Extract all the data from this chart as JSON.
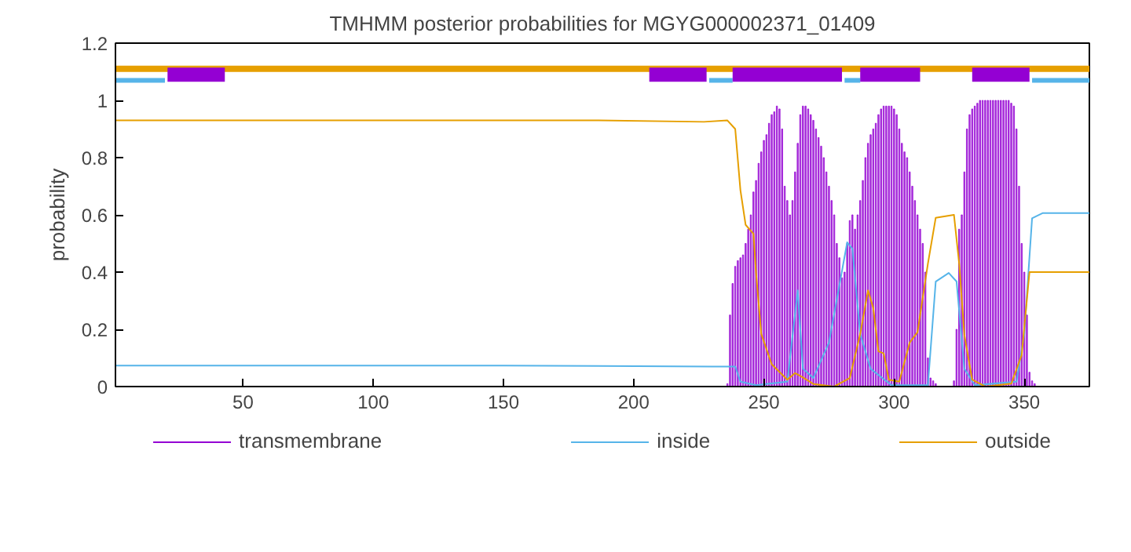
{
  "chart_data": {
    "type": "line",
    "title": "TMHMM posterior probabilities for MGYG000002371_01409",
    "ylabel": "probability",
    "xlim": [
      1,
      375
    ],
    "xticks": [
      50,
      100,
      150,
      200,
      250,
      300,
      350
    ],
    "ylim": [
      0,
      1.2
    ],
    "yticks": [
      0,
      0.2,
      0.4,
      0.6,
      0.8,
      1,
      1.2
    ],
    "grid": false,
    "legend": "bottom",
    "series": [
      {
        "name": "transmembrane",
        "type": "bar",
        "color": "#9400d3",
        "x": [
          236,
          237,
          238,
          239,
          240,
          241,
          242,
          243,
          244,
          245,
          246,
          247,
          248,
          249,
          250,
          251,
          252,
          253,
          254,
          255,
          256,
          257,
          258,
          259,
          260,
          261,
          262,
          263,
          264,
          265,
          266,
          267,
          268,
          269,
          270,
          271,
          272,
          273,
          274,
          275,
          276,
          277,
          278,
          279,
          280,
          281,
          282,
          283,
          284,
          285,
          286,
          287,
          288,
          289,
          290,
          291,
          292,
          293,
          294,
          295,
          296,
          297,
          298,
          299,
          300,
          301,
          302,
          303,
          304,
          305,
          306,
          307,
          308,
          309,
          310,
          311,
          312,
          313,
          314,
          315,
          316,
          317,
          318,
          319,
          320,
          321,
          322,
          323,
          324,
          325,
          326,
          327,
          328,
          329,
          330,
          331,
          332,
          333,
          334,
          335,
          336,
          337,
          338,
          339,
          340,
          341,
          342,
          343,
          344,
          345,
          346,
          347,
          348,
          349,
          350,
          351,
          352,
          353,
          354,
          355
        ],
        "values": [
          0.01,
          0.25,
          0.36,
          0.42,
          0.44,
          0.45,
          0.46,
          0.5,
          0.55,
          0.6,
          0.68,
          0.72,
          0.78,
          0.82,
          0.86,
          0.88,
          0.92,
          0.95,
          0.96,
          0.98,
          0.97,
          0.9,
          0.7,
          0.65,
          0.6,
          0.65,
          0.75,
          0.85,
          0.95,
          0.98,
          0.98,
          0.97,
          0.95,
          0.93,
          0.9,
          0.87,
          0.84,
          0.8,
          0.75,
          0.7,
          0.65,
          0.6,
          0.5,
          0.45,
          0.38,
          0.4,
          0.5,
          0.58,
          0.6,
          0.55,
          0.6,
          0.65,
          0.72,
          0.8,
          0.85,
          0.88,
          0.9,
          0.92,
          0.95,
          0.97,
          0.98,
          0.98,
          0.98,
          0.98,
          0.97,
          0.95,
          0.9,
          0.85,
          0.82,
          0.8,
          0.75,
          0.7,
          0.65,
          0.6,
          0.55,
          0.5,
          0.4,
          0.1,
          0.03,
          0.02,
          0.01,
          0,
          0,
          0,
          0,
          0,
          0,
          0.02,
          0.2,
          0.55,
          0.6,
          0.75,
          0.9,
          0.95,
          0.97,
          0.98,
          0.99,
          1,
          1,
          1,
          1,
          1,
          1,
          1,
          1,
          1,
          1,
          1,
          1,
          0.99,
          0.98,
          0.9,
          0.7,
          0.5,
          0.4,
          0.25,
          0.05,
          0.02,
          0.01,
          0
        ]
      },
      {
        "name": "inside",
        "color": "#56b4e9",
        "x": [
          1,
          150,
          230,
          236,
          239,
          241,
          247,
          259,
          263,
          265,
          269,
          275,
          282,
          284,
          287,
          291,
          299,
          313,
          316,
          321,
          324,
          327,
          331,
          347,
          350,
          353,
          357,
          375
        ],
        "values": [
          0.073,
          0.073,
          0.07,
          0.07,
          0.07,
          0.017,
          0.005,
          0.017,
          0.336,
          0.062,
          0.03,
          0.154,
          0.504,
          0.481,
          0.184,
          0.062,
          0.005,
          0.005,
          0.367,
          0.397,
          0.367,
          0.062,
          0.005,
          0.017,
          0.184,
          0.588,
          0.606,
          0.606
        ]
      },
      {
        "name": "outside",
        "color": "#e69f00",
        "x": [
          1,
          130,
          186,
          227,
          236,
          239,
          241,
          243,
          246,
          247,
          249,
          253,
          259,
          262,
          265,
          269,
          277,
          283,
          287,
          290,
          292,
          294,
          296,
          298,
          302,
          306,
          309,
          313,
          316,
          323,
          325,
          327,
          330,
          335,
          345,
          349,
          352,
          375
        ],
        "values": [
          0.93,
          0.93,
          0.93,
          0.925,
          0.93,
          0.9,
          0.686,
          0.565,
          0.534,
          0.397,
          0.184,
          0.078,
          0.024,
          0.047,
          0.032,
          0.009,
          0,
          0.03,
          0.184,
          0.336,
          0.275,
          0.123,
          0.116,
          0.024,
          0.017,
          0.154,
          0.19,
          0.43,
          0.59,
          0.6,
          0.43,
          0.18,
          0.024,
          0,
          0.01,
          0.11,
          0.4,
          0.4
        ]
      },
      {
        "color": "#e69f00",
        "x": [
          1,
          375
        ],
        "values": [
          1.11,
          1.11
        ]
      },
      {
        "color": "#56b4e9",
        "x": [
          1,
          20,
          21,
          229,
          238,
          239,
          281,
          287,
          288,
          353,
          375
        ],
        "values": [
          1.07,
          1.07,
          null,
          1.07,
          1.07,
          null,
          1.07,
          1.07,
          null,
          1.07,
          1.07
        ]
      },
      {
        "color": "#9400d3",
        "x": [
          21,
          43,
          44,
          206,
          228,
          229,
          238,
          280,
          281,
          287,
          310,
          311,
          330,
          352
        ],
        "values": [
          1.09,
          1.09,
          null,
          1.09,
          1.09,
          null,
          1.09,
          1.09,
          null,
          1.09,
          1.09,
          null,
          1.09,
          1.09
        ]
      }
    ]
  }
}
